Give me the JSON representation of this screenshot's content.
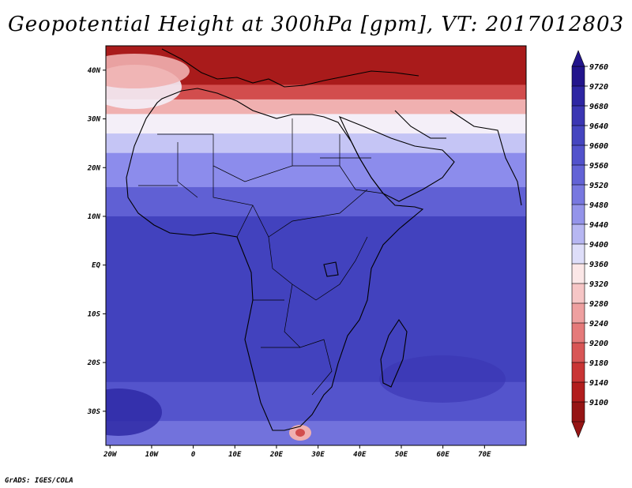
{
  "title": "Geopotential Height at 300hPa [gpm], VT: 2017012803",
  "credit": "GrADS: IGES/COLA",
  "map": {
    "lon_range": [
      -21,
      80
    ],
    "lat_range": [
      -37,
      45
    ],
    "x_ticks": [
      {
        "lon": -20,
        "label": "20W"
      },
      {
        "lon": -10,
        "label": "10W"
      },
      {
        "lon": 0,
        "label": "0"
      },
      {
        "lon": 10,
        "label": "10E"
      },
      {
        "lon": 20,
        "label": "20E"
      },
      {
        "lon": 30,
        "label": "30E"
      },
      {
        "lon": 40,
        "label": "40E"
      },
      {
        "lon": 50,
        "label": "50E"
      },
      {
        "lon": 60,
        "label": "60E"
      },
      {
        "lon": 70,
        "label": "70E"
      }
    ],
    "y_ticks": [
      {
        "lat": 40,
        "label": "40N"
      },
      {
        "lat": 30,
        "label": "30N"
      },
      {
        "lat": 20,
        "label": "20N"
      },
      {
        "lat": 10,
        "label": "10N"
      },
      {
        "lat": 0,
        "label": "EQ"
      },
      {
        "lat": -10,
        "label": "10S"
      },
      {
        "lat": -20,
        "label": "20S"
      },
      {
        "lat": -30,
        "label": "30S"
      }
    ]
  },
  "colorbar": {
    "labels": [
      "9760",
      "9720",
      "9680",
      "9640",
      "9600",
      "9560",
      "9520",
      "9480",
      "9440",
      "9400",
      "9360",
      "9320",
      "9280",
      "9240",
      "9200",
      "9180",
      "9140",
      "9100"
    ],
    "colors": [
      "#23158c",
      "#2e26a3",
      "#3b36b3",
      "#4545c0",
      "#5252cc",
      "#6363d6",
      "#7878e0",
      "#9494ea",
      "#b7b7f2",
      "#dedef9",
      "#fbe7e7",
      "#f6c6c6",
      "#eea0a0",
      "#e57a7a",
      "#d85656",
      "#c93535",
      "#b21e1e",
      "#961515"
    ]
  },
  "field": {
    "bands": [
      {
        "lat_top": 45,
        "lat_bot": 37,
        "color": "#a91b1b"
      },
      {
        "lat_top": 37,
        "lat_bot": 34,
        "color": "#d24d4d"
      },
      {
        "lat_top": 34,
        "lat_bot": 31,
        "color": "#f0b0b0"
      },
      {
        "lat_top": 31,
        "lat_bot": 27,
        "color": "#f4eff8"
      },
      {
        "lat_top": 27,
        "lat_bot": 23,
        "color": "#c5c5f5"
      },
      {
        "lat_top": 23,
        "lat_bot": 16,
        "color": "#8c8cec"
      },
      {
        "lat_top": 16,
        "lat_bot": 10,
        "color": "#6060d4"
      },
      {
        "lat_top": 10,
        "lat_bot": -24,
        "color": "#4242be"
      },
      {
        "lat_top": -24,
        "lat_bot": -32,
        "color": "#5454cc"
      },
      {
        "lat_top": -32,
        "lat_bot": -37,
        "color": "#7272dc"
      }
    ]
  }
}
